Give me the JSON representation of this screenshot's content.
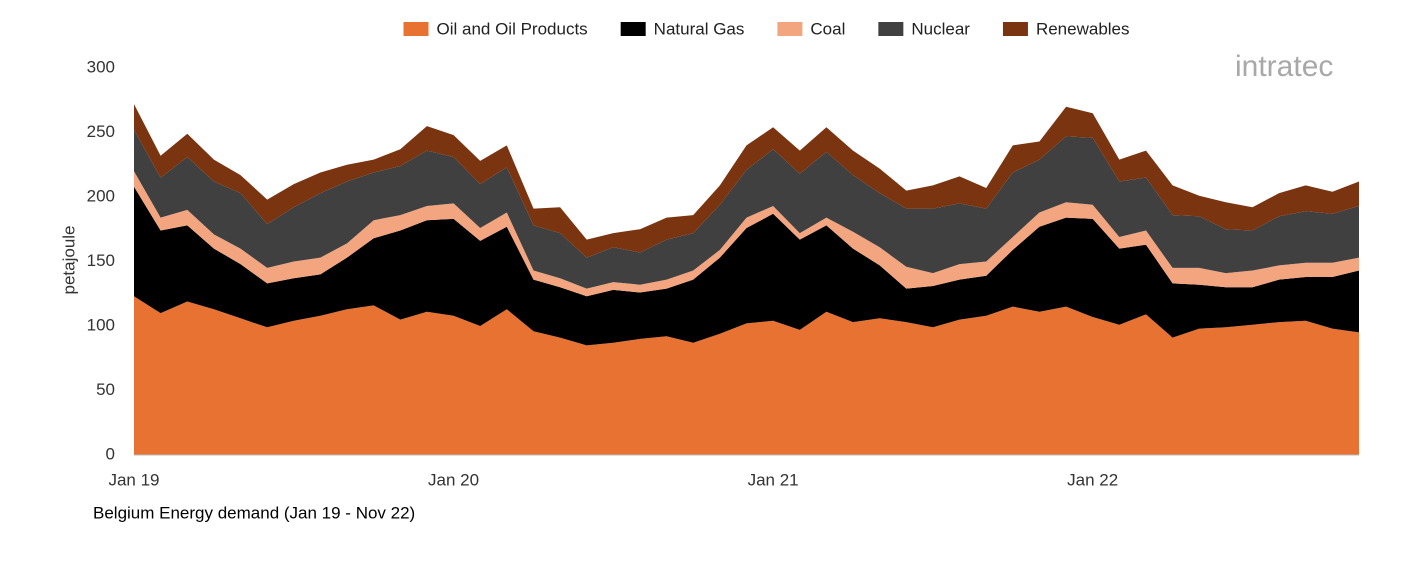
{
  "chart_data": {
    "type": "stacked-area",
    "caption": "Belgium Energy demand (Jan 19 - Nov 22)",
    "y_label": "petajoule",
    "logo": "intratec",
    "categories": [
      "Jan 19",
      null,
      null,
      null,
      null,
      null,
      null,
      null,
      null,
      null,
      null,
      null,
      "Jan 20",
      null,
      null,
      null,
      null,
      null,
      null,
      null,
      null,
      null,
      null,
      null,
      "Jan 21",
      null,
      null,
      null,
      null,
      null,
      null,
      null,
      null,
      null,
      null,
      null,
      "Jan 22",
      null,
      null,
      null,
      null,
      null,
      null,
      null,
      null,
      null,
      null
    ],
    "series": [
      {
        "name": "Oil and Oil Products",
        "color": "#e87232",
        "values": [
          123,
          110,
          119,
          113,
          106,
          99,
          104,
          108,
          113,
          116,
          105,
          111,
          108,
          100,
          113,
          96,
          91,
          85,
          87,
          90,
          92,
          87,
          94,
          102,
          104,
          97,
          111,
          103,
          106,
          103,
          99,
          105,
          108,
          115,
          111,
          115,
          107,
          101,
          109,
          91,
          98,
          99,
          101,
          103,
          104,
          98,
          95
        ]
      },
      {
        "name": "Natural Gas",
        "color": "#000000",
        "values": [
          85,
          64,
          59,
          47,
          42,
          34,
          33,
          32,
          40,
          52,
          69,
          71,
          75,
          66,
          64,
          40,
          39,
          38,
          41,
          36,
          37,
          49,
          59,
          74,
          83,
          70,
          67,
          57,
          41,
          26,
          32,
          31,
          31,
          44,
          66,
          69,
          76,
          59,
          54,
          42,
          34,
          31,
          29,
          33,
          34,
          40,
          48
        ]
      },
      {
        "name": "Coal",
        "color": "#f2a57f",
        "values": [
          12,
          10,
          12,
          11,
          12,
          12,
          13,
          13,
          11,
          14,
          12,
          11,
          12,
          10,
          11,
          7,
          7,
          6,
          6,
          6,
          7,
          7,
          6,
          8,
          6,
          5,
          6,
          13,
          14,
          17,
          10,
          12,
          11,
          10,
          11,
          12,
          11,
          9,
          11,
          12,
          13,
          11,
          13,
          11,
          11,
          11,
          10
        ]
      },
      {
        "name": "Nuclear",
        "color": "#404040",
        "values": [
          32,
          31,
          41,
          41,
          43,
          34,
          42,
          50,
          48,
          37,
          38,
          43,
          36,
          34,
          35,
          35,
          35,
          24,
          27,
          25,
          31,
          29,
          35,
          37,
          44,
          46,
          51,
          44,
          42,
          45,
          50,
          47,
          41,
          50,
          41,
          51,
          52,
          43,
          41,
          41,
          40,
          34,
          31,
          38,
          40,
          38,
          40
        ]
      },
      {
        "name": "Renewables",
        "color": "#7b3410",
        "values": [
          20,
          17,
          18,
          17,
          14,
          19,
          18,
          16,
          13,
          10,
          13,
          19,
          17,
          18,
          17,
          13,
          20,
          14,
          11,
          18,
          17,
          14,
          15,
          19,
          17,
          18,
          19,
          19,
          19,
          14,
          18,
          21,
          16,
          21,
          14,
          23,
          19,
          17,
          21,
          23,
          16,
          21,
          18,
          18,
          20,
          17,
          19
        ]
      }
    ],
    "ylim": [
      0,
      300
    ],
    "yticks": [
      0,
      50,
      100,
      150,
      200,
      250,
      300
    ],
    "grid": false,
    "legend": "top"
  }
}
